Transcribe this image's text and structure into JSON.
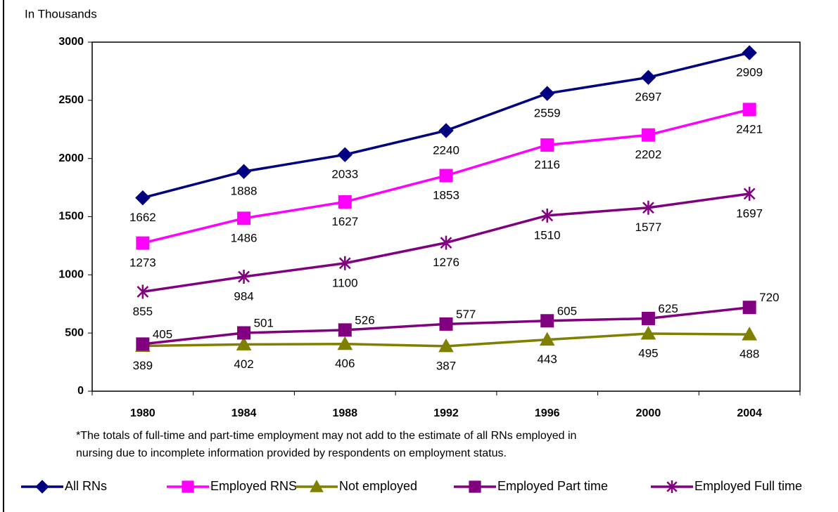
{
  "chart_data": {
    "type": "line",
    "y_axis_label": "In Thousands",
    "note": [
      "*The totals of full-time and part-time employment may not add to the estimate of all RNs employed in",
      "nursing due to incomplete information provided by respondents on employment status."
    ],
    "categories": [
      "1980",
      "1984",
      "1988",
      "1992",
      "1996",
      "2000",
      "2004"
    ],
    "ylim": [
      0,
      3000
    ],
    "yticks": [
      0,
      500,
      1000,
      1500,
      2000,
      2500,
      3000
    ],
    "grid": false,
    "legend": "bottom",
    "series": [
      {
        "name": "All RNs",
        "color": "#000080",
        "marker": "diamond",
        "label_position": "below",
        "values": [
          1662,
          1888,
          2033,
          2240,
          2559,
          2697,
          2909
        ]
      },
      {
        "name": "Employed RNS",
        "color": "#FF00FF",
        "marker": "square",
        "label_position": "below",
        "values": [
          1273,
          1486,
          1627,
          1853,
          2116,
          2202,
          2421
        ]
      },
      {
        "name": "Not employed",
        "color": "#808000",
        "marker": "triangle",
        "label_position": "below",
        "values": [
          389,
          402,
          406,
          387,
          443,
          495,
          488
        ]
      },
      {
        "name": "Employed Part time",
        "color": "#800080",
        "marker": "square",
        "label_position": "above-right",
        "values": [
          405,
          501,
          526,
          577,
          605,
          625,
          720
        ]
      },
      {
        "name": "Employed Full time",
        "color": "#800080",
        "marker": "asterisk",
        "label_position": "below",
        "values": [
          855,
          984,
          1100,
          1276,
          1510,
          1577,
          1697
        ]
      }
    ]
  }
}
